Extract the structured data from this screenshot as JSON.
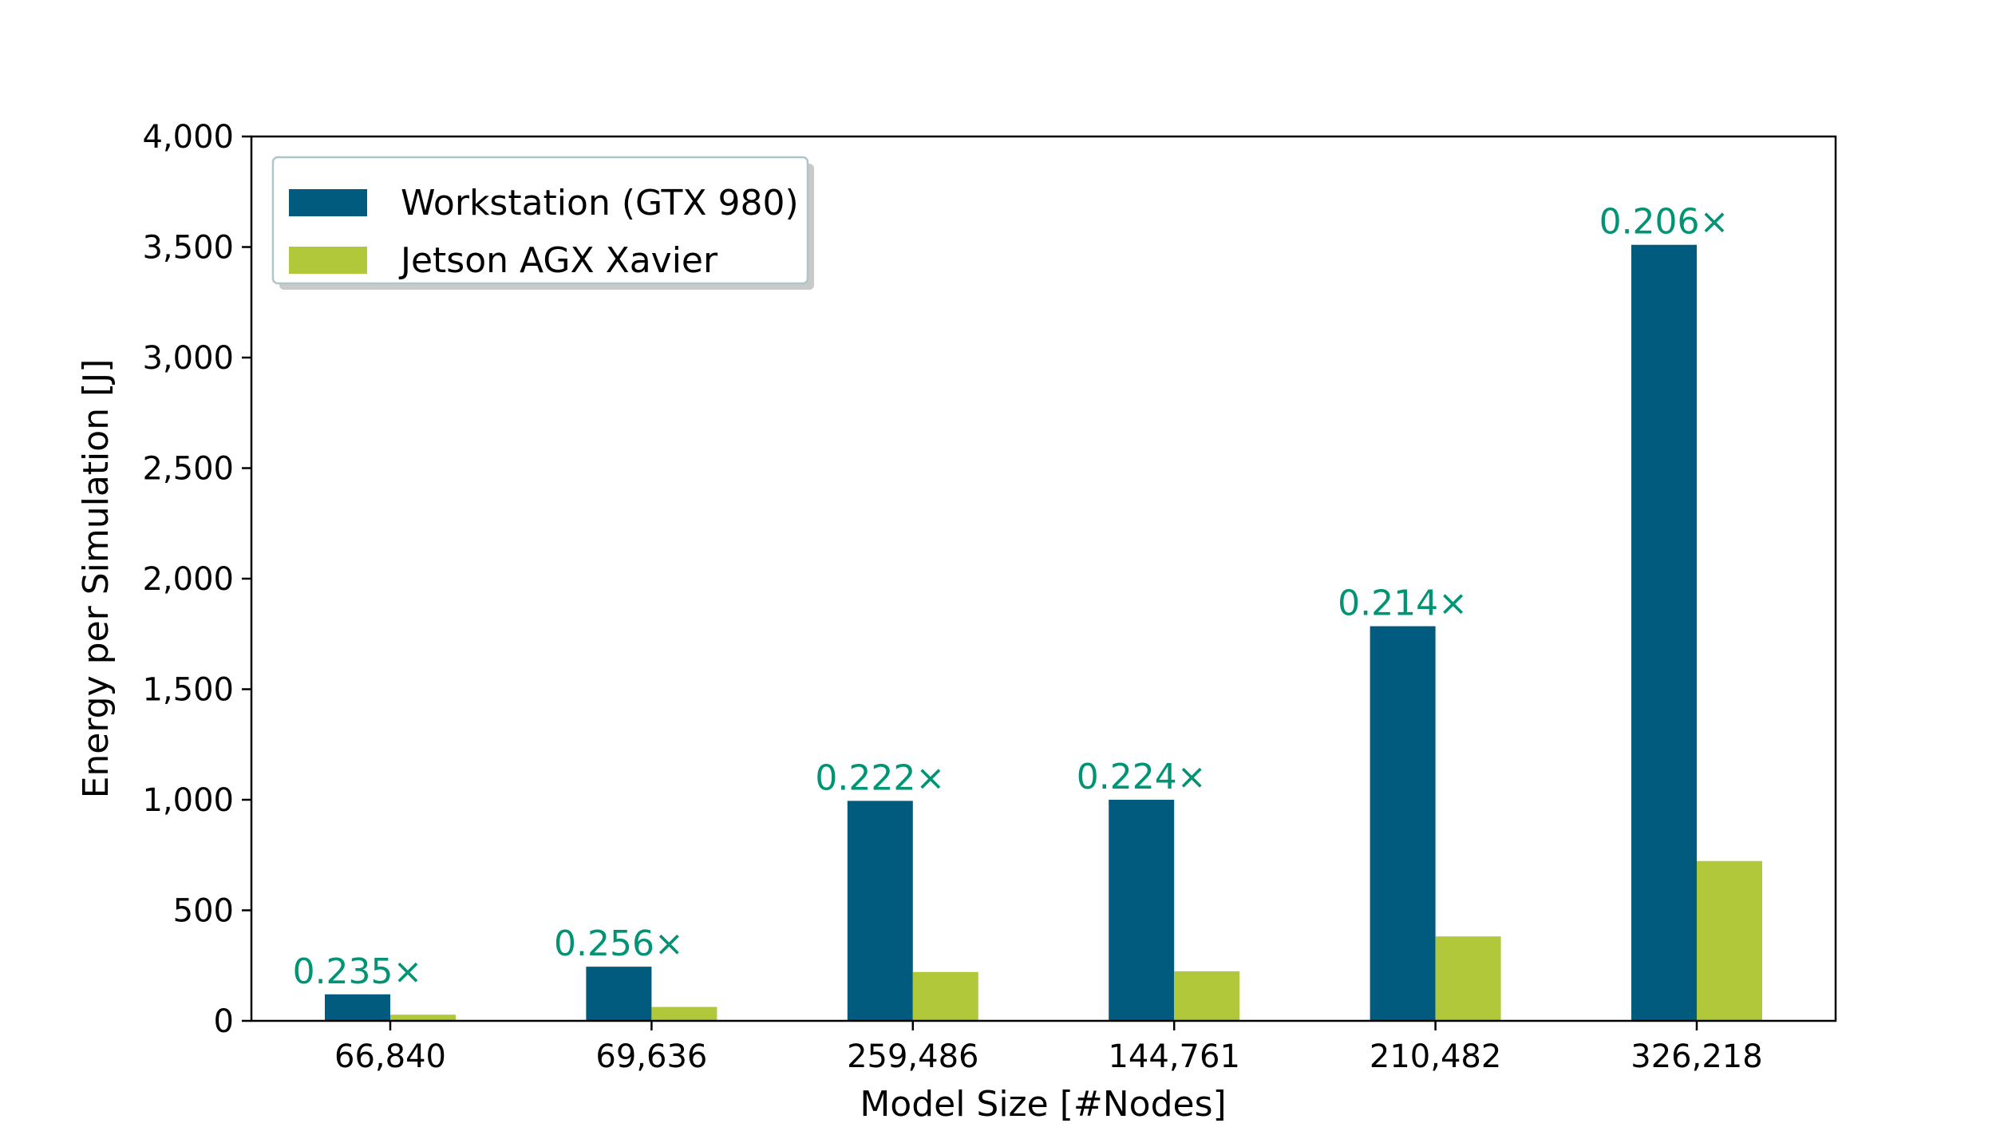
{
  "chart_data": {
    "type": "bar",
    "xlabel": "Model Size [#Nodes]",
    "ylabel": "Energy per Simulation [J]",
    "categories": [
      "66,840",
      "69,636",
      "259,486",
      "144,761",
      "210,482",
      "326,218"
    ],
    "ylim": [
      0,
      4000
    ],
    "yticks": [
      0,
      500,
      1000,
      1500,
      2000,
      2500,
      3000,
      3500,
      4000
    ],
    "ytick_labels": [
      "0",
      "500",
      "1,000",
      "1,500",
      "2,000",
      "2,500",
      "3,000",
      "3,500",
      "4,000"
    ],
    "series": [
      {
        "name": "Workstation (GTX 980)",
        "color": "#005b7f",
        "values": [
          120,
          245,
          995,
          1000,
          1785,
          3510
        ]
      },
      {
        "name": "Jetson AGX Xavier",
        "color": "#b1c83a",
        "values": [
          28,
          63,
          221,
          224,
          382,
          723
        ]
      }
    ],
    "annotations": [
      "0.235×",
      "0.256×",
      "0.222×",
      "0.224×",
      "0.214×",
      "0.206×"
    ],
    "annotation_color": "#009474",
    "legend_position": "top-left",
    "grid": false
  }
}
